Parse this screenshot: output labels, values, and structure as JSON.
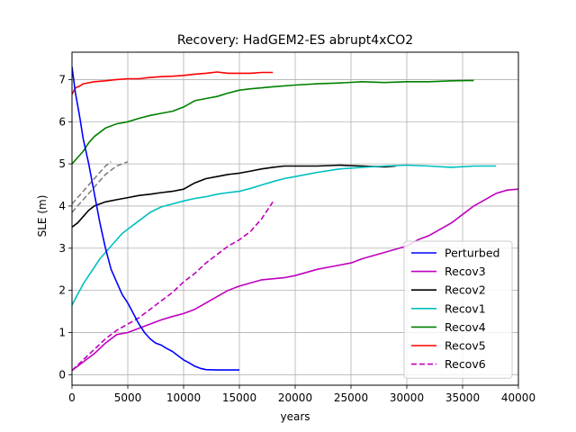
{
  "chart_data": {
    "type": "line",
    "title": "Recovery: HadGEM2-ES abrupt4xCO2",
    "xlabel": "years",
    "ylabel": "SLE (m)",
    "xlim": [
      0,
      40000
    ],
    "ylim": [
      -0.25,
      7.65
    ],
    "xticks": [
      0,
      5000,
      10000,
      15000,
      20000,
      25000,
      30000,
      35000,
      40000
    ],
    "yticks": [
      0,
      1,
      2,
      3,
      4,
      5,
      6,
      7
    ],
    "grid": true,
    "legend_position": "lower-right",
    "series": [
      {
        "name": "Perturbed",
        "color": "#0000ff",
        "style": "solid",
        "x": [
          0,
          300,
          700,
          1000,
          1500,
          2000,
          2500,
          3000,
          3500,
          4000,
          4500,
          5000,
          5500,
          6000,
          6500,
          7000,
          7500,
          8000,
          8500,
          9000,
          9500,
          10000,
          10500,
          11000,
          11500,
          12000,
          13000,
          14000,
          15000
        ],
        "y": [
          7.3,
          6.7,
          6.1,
          5.6,
          5.0,
          4.3,
          3.6,
          3.0,
          2.5,
          2.2,
          1.9,
          1.7,
          1.45,
          1.2,
          1.0,
          0.85,
          0.75,
          0.7,
          0.62,
          0.55,
          0.45,
          0.35,
          0.28,
          0.2,
          0.15,
          0.12,
          0.11,
          0.11,
          0.11
        ]
      },
      {
        "name": "Recov3",
        "color": "#bf00bf",
        "style": "solid",
        "x": [
          0,
          1000,
          2000,
          3000,
          4000,
          5000,
          6000,
          7000,
          8000,
          9000,
          10000,
          11000,
          12000,
          13000,
          14000,
          15000,
          17000,
          19000,
          20000,
          22000,
          24000,
          25000,
          26000,
          28000,
          30000,
          31000,
          32000,
          33000,
          34000,
          35000,
          36000,
          37000,
          38000,
          39000,
          40000
        ],
        "y": [
          0.1,
          0.3,
          0.5,
          0.75,
          0.95,
          1.0,
          1.1,
          1.2,
          1.3,
          1.38,
          1.45,
          1.55,
          1.7,
          1.85,
          2.0,
          2.1,
          2.25,
          2.3,
          2.35,
          2.5,
          2.6,
          2.65,
          2.75,
          2.9,
          3.05,
          3.2,
          3.3,
          3.45,
          3.6,
          3.8,
          4.0,
          4.15,
          4.3,
          4.38,
          4.4
        ]
      },
      {
        "name": "Recov2",
        "color": "#000000",
        "style": "solid",
        "x": [
          0,
          500,
          1000,
          1500,
          2000,
          3000,
          4000,
          5000,
          6000,
          7000,
          8000,
          9000,
          10000,
          11000,
          12000,
          13000,
          14000,
          15000,
          16000,
          17000,
          18000,
          19000,
          20000,
          22000,
          24000,
          26000,
          28000,
          29000
        ],
        "y": [
          3.5,
          3.6,
          3.75,
          3.9,
          4.0,
          4.1,
          4.15,
          4.2,
          4.25,
          4.28,
          4.32,
          4.35,
          4.4,
          4.55,
          4.65,
          4.7,
          4.75,
          4.78,
          4.83,
          4.88,
          4.92,
          4.95,
          4.95,
          4.95,
          4.97,
          4.95,
          4.93,
          4.95
        ]
      },
      {
        "name": "Recov1",
        "color": "#00bfbf",
        "style": "solid",
        "x": [
          0,
          500,
          1000,
          1500,
          2000,
          2500,
          3000,
          3500,
          4000,
          4500,
          5000,
          6000,
          7000,
          8000,
          9000,
          10000,
          11000,
          12000,
          13000,
          14000,
          15000,
          16000,
          17000,
          18000,
          19000,
          20000,
          22000,
          24000,
          26000,
          28000,
          30000,
          32000,
          34000,
          36000,
          38000
        ],
        "y": [
          1.65,
          1.9,
          2.15,
          2.35,
          2.55,
          2.75,
          2.9,
          3.05,
          3.2,
          3.35,
          3.45,
          3.65,
          3.85,
          3.98,
          4.05,
          4.12,
          4.18,
          4.22,
          4.28,
          4.32,
          4.35,
          4.42,
          4.5,
          4.58,
          4.65,
          4.7,
          4.8,
          4.88,
          4.92,
          4.95,
          4.97,
          4.95,
          4.92,
          4.95,
          4.95
        ]
      },
      {
        "name": "Recov4",
        "color": "#008000",
        "style": "solid",
        "x": [
          0,
          500,
          1000,
          1500,
          2000,
          3000,
          4000,
          5000,
          6000,
          7000,
          8000,
          9000,
          10000,
          11000,
          12000,
          13000,
          14000,
          15000,
          16000,
          18000,
          20000,
          22000,
          24000,
          26000,
          28000,
          30000,
          32000,
          34000,
          36000
        ],
        "y": [
          5.0,
          5.15,
          5.3,
          5.5,
          5.65,
          5.85,
          5.95,
          6.0,
          6.08,
          6.15,
          6.2,
          6.25,
          6.35,
          6.5,
          6.55,
          6.6,
          6.68,
          6.75,
          6.78,
          6.83,
          6.87,
          6.9,
          6.92,
          6.95,
          6.93,
          6.95,
          6.95,
          6.97,
          6.98
        ]
      },
      {
        "name": "Recov5",
        "color": "#ff0000",
        "style": "solid",
        "x": [
          0,
          300,
          700,
          1000,
          2000,
          3000,
          4000,
          5000,
          6000,
          7000,
          8000,
          9000,
          10000,
          11000,
          12000,
          13000,
          14000,
          15000,
          16000,
          17000,
          18000
        ],
        "y": [
          6.65,
          6.8,
          6.85,
          6.9,
          6.95,
          6.97,
          7.0,
          7.02,
          7.02,
          7.05,
          7.07,
          7.08,
          7.1,
          7.13,
          7.15,
          7.18,
          7.15,
          7.15,
          7.15,
          7.17,
          7.17
        ]
      },
      {
        "name": "Recov6",
        "color": "#bf00bf",
        "style": "dashed",
        "x": [
          0,
          1000,
          2000,
          3000,
          4000,
          5000,
          6000,
          7000,
          8000,
          9000,
          10000,
          11000,
          12000,
          13000,
          14000,
          15000,
          16000,
          17000,
          18000
        ],
        "y": [
          0.1,
          0.35,
          0.6,
          0.85,
          1.05,
          1.2,
          1.35,
          1.55,
          1.75,
          1.95,
          2.2,
          2.4,
          2.65,
          2.85,
          3.05,
          3.2,
          3.4,
          3.7,
          4.1
        ]
      },
      {
        "name": "",
        "color": "#808080",
        "style": "dashed",
        "x": [
          0,
          500,
          1000,
          1500,
          2000,
          2500,
          3000,
          3500
        ],
        "y": [
          4.05,
          4.2,
          4.35,
          4.5,
          4.65,
          4.8,
          4.95,
          5.05
        ]
      },
      {
        "name": "",
        "color": "#808080",
        "style": "dashed",
        "x": [
          0,
          500,
          1000,
          1500,
          2000,
          2500,
          3000,
          3500,
          4000,
          4500,
          5000
        ],
        "y": [
          3.85,
          4.0,
          4.15,
          4.3,
          4.45,
          4.6,
          4.75,
          4.85,
          4.95,
          5.0,
          5.05
        ]
      }
    ]
  }
}
